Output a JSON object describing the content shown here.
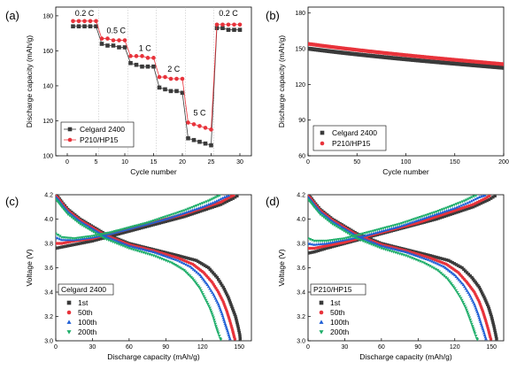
{
  "chart_data": [
    {
      "panel": "(a)",
      "type": "scatter",
      "xlabel": "Cycle number",
      "ylabel": "Discharge capacity (mAh/g)",
      "xlim": [
        -2,
        32
      ],
      "ylim": [
        100,
        185
      ],
      "xticks": [
        0,
        5,
        10,
        15,
        20,
        25,
        30
      ],
      "yticks": [
        100,
        120,
        140,
        160,
        180
      ],
      "legend_position": "bottom-left",
      "annotations": [
        {
          "text": "0.2 C",
          "x": 3,
          "y": 180
        },
        {
          "text": "0.5 C",
          "x": 8.5,
          "y": 170
        },
        {
          "text": "1 C",
          "x": 13.5,
          "y": 160
        },
        {
          "text": "2 C",
          "x": 18.5,
          "y": 148
        },
        {
          "text": "5 C",
          "x": 23,
          "y": 123
        },
        {
          "text": "0.2 C",
          "x": 28,
          "y": 180
        }
      ],
      "series": [
        {
          "name": "Celgard 2400",
          "color": "#3a3a3a",
          "marker": "square",
          "x": [
            1,
            2,
            3,
            4,
            5,
            6,
            7,
            8,
            9,
            10,
            11,
            12,
            13,
            14,
            15,
            16,
            17,
            18,
            19,
            20,
            21,
            22,
            23,
            24,
            25,
            26,
            27,
            28,
            29,
            30
          ],
          "y": [
            174,
            174,
            174,
            174,
            174,
            164,
            163,
            163,
            162,
            162,
            153,
            152,
            151,
            151,
            151,
            139,
            138,
            137,
            137,
            136,
            110,
            109,
            108,
            107,
            106,
            173,
            173,
            172,
            172,
            172
          ]
        },
        {
          "name": "P210/HP15",
          "color": "#e8333b",
          "marker": "circle",
          "x": [
            1,
            2,
            3,
            4,
            5,
            6,
            7,
            8,
            9,
            10,
            11,
            12,
            13,
            14,
            15,
            16,
            17,
            18,
            19,
            20,
            21,
            22,
            23,
            24,
            25,
            26,
            27,
            28,
            29,
            30
          ],
          "y": [
            177,
            177,
            177,
            177,
            177,
            167,
            167,
            166,
            166,
            166,
            157,
            157,
            157,
            156,
            156,
            145,
            145,
            144,
            144,
            144,
            119,
            118,
            117,
            116,
            115,
            175,
            175,
            175,
            175,
            175
          ]
        }
      ]
    },
    {
      "panel": "(b)",
      "type": "scatter",
      "xlabel": "Cycle number",
      "ylabel": "Discharge capacity (mAh/g)",
      "xlim": [
        0,
        200
      ],
      "ylim": [
        60,
        185
      ],
      "xticks": [
        0,
        50,
        100,
        150,
        200
      ],
      "yticks": [
        60,
        90,
        120,
        150,
        180
      ],
      "legend_position": "bottom-left",
      "series": [
        {
          "name": "Celgard 2400",
          "color": "#3a3a3a",
          "marker": "square",
          "x_range": [
            1,
            200
          ],
          "y_start": 150,
          "y_end": 134
        },
        {
          "name": "P210/HP15",
          "color": "#e8333b",
          "marker": "circle",
          "x_range": [
            1,
            200
          ],
          "y_start": 154,
          "y_end": 137
        }
      ]
    },
    {
      "panel": "(c)",
      "type": "scatter",
      "xlabel": "Discharge capacity (mAh/g)",
      "ylabel": "Voltage (V)",
      "xlim": [
        0,
        160
      ],
      "ylim": [
        3.0,
        4.2
      ],
      "xticks": [
        0,
        30,
        60,
        90,
        120,
        150
      ],
      "yticks": [
        3.0,
        3.2,
        3.4,
        3.6,
        3.8,
        4.0,
        4.2
      ],
      "legend_title": "Celgard 2400",
      "legend_position": "bottom-left",
      "series": [
        {
          "name": "1st",
          "color": "#3a3a3a",
          "marker": "square",
          "discharge_x": [
            0,
            2,
            5,
            10,
            20,
            40,
            60,
            80,
            100,
            115,
            125,
            132,
            137,
            141,
            144,
            147,
            149,
            150.5,
            151
          ],
          "discharge_y": [
            4.2,
            4.18,
            4.14,
            4.08,
            4.0,
            3.88,
            3.8,
            3.75,
            3.7,
            3.66,
            3.6,
            3.52,
            3.44,
            3.36,
            3.28,
            3.2,
            3.12,
            3.05,
            3.0
          ],
          "charge_x": [
            0,
            5,
            15,
            30,
            45,
            60,
            75,
            90,
            105,
            120,
            135,
            145,
            150
          ],
          "charge_y": [
            3.76,
            3.77,
            3.79,
            3.82,
            3.86,
            3.9,
            3.94,
            3.98,
            4.02,
            4.07,
            4.12,
            4.17,
            4.2
          ]
        },
        {
          "name": "50th",
          "color": "#e8333b",
          "marker": "circle",
          "discharge_x": [
            0,
            2,
            5,
            10,
            20,
            40,
            60,
            80,
            100,
            112,
            121,
            128,
            133,
            137,
            140,
            142.5,
            144.5,
            146,
            147
          ],
          "discharge_y": [
            4.19,
            4.17,
            4.13,
            4.07,
            3.99,
            3.87,
            3.79,
            3.74,
            3.68,
            3.63,
            3.56,
            3.48,
            3.4,
            3.32,
            3.24,
            3.16,
            3.09,
            3.03,
            3.0
          ],
          "charge_x": [
            0,
            5,
            15,
            30,
            45,
            60,
            75,
            90,
            105,
            120,
            135,
            142,
            147
          ],
          "charge_y": [
            3.8,
            3.8,
            3.82,
            3.84,
            3.88,
            3.92,
            3.96,
            4.0,
            4.04,
            4.09,
            4.14,
            4.18,
            4.2
          ]
        },
        {
          "name": "100th",
          "color": "#1f5fd6",
          "marker": "triangle",
          "discharge_x": [
            0,
            2,
            5,
            10,
            20,
            40,
            60,
            80,
            100,
            110,
            118,
            124,
            129,
            133,
            136,
            138.5,
            140.5,
            142,
            143
          ],
          "discharge_y": [
            4.18,
            4.16,
            4.12,
            4.06,
            3.98,
            3.86,
            3.78,
            3.73,
            3.66,
            3.61,
            3.54,
            3.46,
            3.38,
            3.3,
            3.22,
            3.14,
            3.08,
            3.03,
            3.0
          ],
          "charge_x": [
            0,
            5,
            15,
            30,
            45,
            60,
            75,
            90,
            105,
            120,
            130,
            138,
            143
          ],
          "charge_y": [
            3.85,
            3.83,
            3.83,
            3.85,
            3.88,
            3.92,
            3.96,
            4.0,
            4.05,
            4.1,
            4.14,
            4.18,
            4.2
          ]
        },
        {
          "name": "200th",
          "color": "#1fae6a",
          "marker": "triangle-down",
          "discharge_x": [
            0,
            2,
            5,
            10,
            20,
            40,
            60,
            80,
            95,
            105,
            112,
            118,
            122,
            126,
            129,
            131,
            133,
            134.5,
            135.5
          ],
          "discharge_y": [
            4.16,
            4.14,
            4.1,
            4.04,
            3.96,
            3.84,
            3.76,
            3.7,
            3.64,
            3.58,
            3.51,
            3.43,
            3.35,
            3.27,
            3.19,
            3.12,
            3.06,
            3.02,
            3.0
          ],
          "charge_x": [
            0,
            5,
            15,
            30,
            45,
            60,
            75,
            90,
            105,
            115,
            125,
            131,
            135.5
          ],
          "charge_y": [
            3.88,
            3.85,
            3.84,
            3.86,
            3.89,
            3.93,
            3.97,
            4.02,
            4.07,
            4.11,
            4.15,
            4.18,
            4.2
          ]
        }
      ]
    },
    {
      "panel": "(d)",
      "type": "scatter",
      "xlabel": "Discharge capacity (mAh/g)",
      "ylabel": "Voltage (V)",
      "xlim": [
        0,
        160
      ],
      "ylim": [
        3.0,
        4.2
      ],
      "xticks": [
        0,
        30,
        60,
        90,
        120,
        150
      ],
      "yticks": [
        3.0,
        3.2,
        3.4,
        3.6,
        3.8,
        4.0,
        4.2
      ],
      "legend_title": "P210/HP15",
      "legend_position": "bottom-left",
      "series": [
        {
          "name": "1st",
          "color": "#3a3a3a",
          "marker": "square",
          "discharge_x": [
            0,
            2,
            5,
            10,
            20,
            40,
            60,
            80,
            100,
            115,
            126,
            134,
            140,
            144,
            147.5,
            150,
            152,
            153.5,
            154.5
          ],
          "discharge_y": [
            4.2,
            4.18,
            4.14,
            4.08,
            4.0,
            3.88,
            3.8,
            3.75,
            3.7,
            3.66,
            3.6,
            3.52,
            3.44,
            3.36,
            3.28,
            3.2,
            3.12,
            3.05,
            3.0
          ],
          "charge_x": [
            0,
            5,
            15,
            30,
            45,
            60,
            75,
            90,
            105,
            120,
            135,
            148,
            154.5
          ],
          "charge_y": [
            3.72,
            3.73,
            3.76,
            3.8,
            3.84,
            3.88,
            3.92,
            3.96,
            4.0,
            4.05,
            4.1,
            4.16,
            4.2
          ]
        },
        {
          "name": "50th",
          "color": "#e8333b",
          "marker": "circle",
          "discharge_x": [
            0,
            2,
            5,
            10,
            20,
            40,
            60,
            80,
            100,
            113,
            123,
            130,
            136,
            140,
            143,
            145.5,
            147.5,
            149,
            150
          ],
          "discharge_y": [
            4.19,
            4.17,
            4.13,
            4.07,
            3.99,
            3.87,
            3.79,
            3.74,
            3.68,
            3.63,
            3.56,
            3.48,
            3.4,
            3.32,
            3.24,
            3.16,
            3.09,
            3.03,
            3.0
          ],
          "charge_x": [
            0,
            5,
            15,
            30,
            45,
            60,
            75,
            90,
            105,
            120,
            135,
            145,
            150
          ],
          "charge_y": [
            3.76,
            3.76,
            3.78,
            3.81,
            3.85,
            3.89,
            3.93,
            3.97,
            4.02,
            4.07,
            4.12,
            4.17,
            4.2
          ]
        },
        {
          "name": "100th",
          "color": "#1f5fd6",
          "marker": "triangle",
          "discharge_x": [
            0,
            2,
            5,
            10,
            20,
            40,
            60,
            80,
            100,
            111,
            120,
            127,
            132,
            136,
            139,
            141.5,
            143.5,
            145,
            146
          ],
          "discharge_y": [
            4.18,
            4.16,
            4.12,
            4.06,
            3.98,
            3.86,
            3.78,
            3.73,
            3.66,
            3.61,
            3.54,
            3.46,
            3.38,
            3.3,
            3.22,
            3.14,
            3.08,
            3.03,
            3.0
          ],
          "charge_x": [
            0,
            5,
            15,
            30,
            45,
            60,
            75,
            90,
            105,
            120,
            132,
            140,
            146
          ],
          "charge_y": [
            3.8,
            3.79,
            3.8,
            3.83,
            3.86,
            3.9,
            3.94,
            3.99,
            4.04,
            4.09,
            4.14,
            4.18,
            4.2
          ]
        },
        {
          "name": "200th",
          "color": "#1fae6a",
          "marker": "triangle-down",
          "discharge_x": [
            0,
            2,
            5,
            10,
            20,
            40,
            60,
            80,
            95,
            106,
            114,
            120,
            125,
            129,
            132,
            134.5,
            136.5,
            138,
            139
          ],
          "discharge_y": [
            4.16,
            4.14,
            4.1,
            4.04,
            3.96,
            3.84,
            3.76,
            3.7,
            3.64,
            3.58,
            3.51,
            3.43,
            3.35,
            3.27,
            3.19,
            3.12,
            3.06,
            3.02,
            3.0
          ],
          "charge_x": [
            0,
            5,
            15,
            30,
            45,
            60,
            75,
            90,
            105,
            118,
            128,
            134,
            139
          ],
          "charge_y": [
            3.84,
            3.82,
            3.82,
            3.84,
            3.88,
            3.92,
            3.96,
            4.01,
            4.06,
            4.11,
            4.15,
            4.18,
            4.2
          ]
        }
      ]
    }
  ]
}
